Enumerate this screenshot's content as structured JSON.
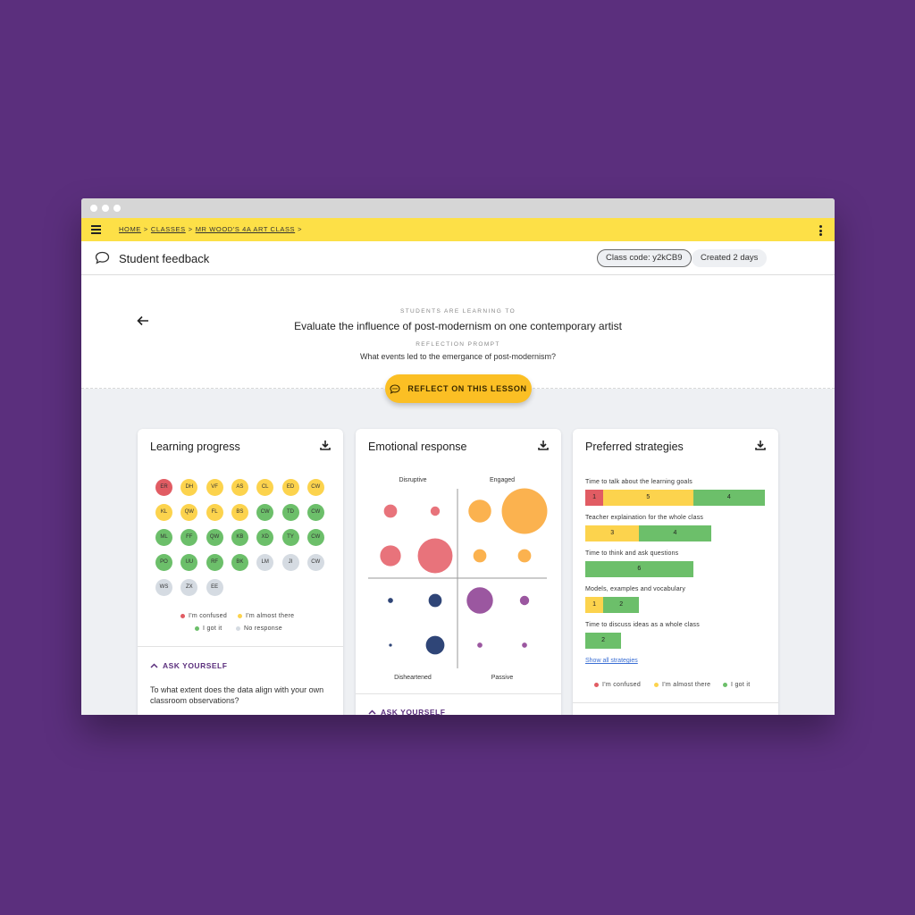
{
  "breadcrumb": {
    "home": "HOME",
    "classes": "CLASSES",
    "class_name": "MR WOOD'S 4A ART CLASS",
    "sep": ">"
  },
  "header": {
    "title": "Student feedback",
    "class_code": "Class code: y2kCB9",
    "created": "Created 2 days"
  },
  "hero": {
    "learning_label": "STUDENTS ARE LEARNING TO",
    "objective": "Evaluate the influence of post-modernism on one contemporary artist",
    "prompt_label": "REFLECTION PROMPT",
    "prompt": "What events led to the emergance of post-modernism?"
  },
  "reflect_button": "REFLECT ON THIS LESSON",
  "colors": {
    "confused": "#e15c63",
    "almost": "#fcd34d",
    "got_it": "#6cbf6a",
    "no_response": "#d5dbe2",
    "accent": "#fbbf24",
    "brand": "#5b2f7d"
  },
  "learning_progress": {
    "title": "Learning progress",
    "students": [
      {
        "initials": "ER",
        "status": "confused"
      },
      {
        "initials": "DH",
        "status": "almost"
      },
      {
        "initials": "VF",
        "status": "almost"
      },
      {
        "initials": "AS",
        "status": "almost"
      },
      {
        "initials": "CL",
        "status": "almost"
      },
      {
        "initials": "ED",
        "status": "almost"
      },
      {
        "initials": "CW",
        "status": "almost"
      },
      {
        "initials": "KL",
        "status": "almost"
      },
      {
        "initials": "QW",
        "status": "almost"
      },
      {
        "initials": "FL",
        "status": "almost"
      },
      {
        "initials": "BS",
        "status": "almost"
      },
      {
        "initials": "CW",
        "status": "got_it"
      },
      {
        "initials": "TD",
        "status": "got_it"
      },
      {
        "initials": "CW",
        "status": "got_it"
      },
      {
        "initials": "ML",
        "status": "got_it"
      },
      {
        "initials": "FF",
        "status": "got_it"
      },
      {
        "initials": "QW",
        "status": "got_it"
      },
      {
        "initials": "KB",
        "status": "got_it"
      },
      {
        "initials": "XD",
        "status": "got_it"
      },
      {
        "initials": "TY",
        "status": "got_it"
      },
      {
        "initials": "CW",
        "status": "got_it"
      },
      {
        "initials": "PO",
        "status": "got_it"
      },
      {
        "initials": "UU",
        "status": "got_it"
      },
      {
        "initials": "RF",
        "status": "got_it"
      },
      {
        "initials": "BK",
        "status": "got_it"
      },
      {
        "initials": "LM",
        "status": "no_response"
      },
      {
        "initials": "JI",
        "status": "no_response"
      },
      {
        "initials": "CW",
        "status": "no_response"
      },
      {
        "initials": "WS",
        "status": "no_response"
      },
      {
        "initials": "ZX",
        "status": "no_response"
      },
      {
        "initials": "EE",
        "status": "no_response"
      }
    ],
    "legend": {
      "confused": "I'm confused",
      "almost": "I'm almost there",
      "got_it": "I got it",
      "no_response": "No response"
    },
    "ask_title": "ASK YOURSELF",
    "ask_text": "To what extent does the data align with your own classroom observations?"
  },
  "emotional_response": {
    "title": "Emotional response",
    "labels": {
      "top_left": "Disruptive",
      "top_right": "Engaged",
      "bottom_left": "Disheartened",
      "bottom_right": "Passive"
    },
    "ask_title": "ASK YOURSELF",
    "bubbles": [
      {
        "quadrant": "Disruptive",
        "col": 0,
        "row": 0,
        "size": 2,
        "color": "#e8737b"
      },
      {
        "quadrant": "Disruptive",
        "col": 1,
        "row": 0,
        "size": 1,
        "color": "#e8737b"
      },
      {
        "quadrant": "Disruptive",
        "col": 0,
        "row": 1,
        "size": 5,
        "color": "#e8737b"
      },
      {
        "quadrant": "Disruptive",
        "col": 1,
        "row": 1,
        "size": 14,
        "color": "#e8737b"
      },
      {
        "quadrant": "Engaged",
        "col": 0,
        "row": 0,
        "size": 6,
        "color": "#fbb24f"
      },
      {
        "quadrant": "Engaged",
        "col": 1,
        "row": 0,
        "size": 24,
        "color": "#fbb24f"
      },
      {
        "quadrant": "Engaged",
        "col": 0,
        "row": 1,
        "size": 2,
        "color": "#fbb24f"
      },
      {
        "quadrant": "Engaged",
        "col": 1,
        "row": 1,
        "size": 2,
        "color": "#fbb24f"
      },
      {
        "quadrant": "Disheartened",
        "col": 0,
        "row": 0,
        "size": 0.3,
        "color": "#2f4577"
      },
      {
        "quadrant": "Disheartened",
        "col": 1,
        "row": 0,
        "size": 2,
        "color": "#2f4577"
      },
      {
        "quadrant": "Disheartened",
        "col": 0,
        "row": 1,
        "size": 0.1,
        "color": "#2f4577"
      },
      {
        "quadrant": "Disheartened",
        "col": 1,
        "row": 1,
        "size": 4,
        "color": "#2f4577"
      },
      {
        "quadrant": "Passive",
        "col": 0,
        "row": 0,
        "size": 8,
        "color": "#9b57a0"
      },
      {
        "quadrant": "Passive",
        "col": 1,
        "row": 0,
        "size": 1,
        "color": "#9b57a0"
      },
      {
        "quadrant": "Passive",
        "col": 0,
        "row": 1,
        "size": 0.3,
        "color": "#9b57a0"
      },
      {
        "quadrant": "Passive",
        "col": 1,
        "row": 1,
        "size": 0.3,
        "color": "#9b57a0"
      }
    ]
  },
  "preferred_strategies": {
    "title": "Preferred strategies",
    "items": [
      {
        "label": "Time to talk about the learning goals",
        "confused": 1,
        "almost": 5,
        "got_it": 4
      },
      {
        "label": "Teacher explaination for the whole class",
        "confused": 0,
        "almost": 3,
        "got_it": 4
      },
      {
        "label": "Time to think and ask questions",
        "confused": 0,
        "almost": 0,
        "got_it": 6
      },
      {
        "label": "Models, examples and vocabulary",
        "confused": 0,
        "almost": 1,
        "got_it": 2
      },
      {
        "label": "Time to discuss ideas as a whole class",
        "confused": 0,
        "almost": 0,
        "got_it": 2
      }
    ],
    "show_all": "Show all strategies",
    "legend": {
      "confused": "I'm confused",
      "almost": "I'm almost there",
      "got_it": "I got it"
    }
  }
}
